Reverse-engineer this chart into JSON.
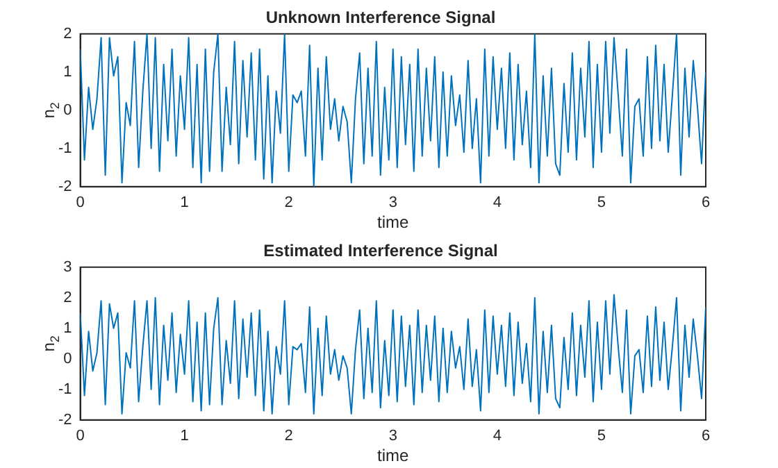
{
  "chart_data": [
    {
      "type": "line",
      "title": "Unknown Interference Signal",
      "xlabel": "time",
      "ylabel": "n$_{2}$",
      "xlim": [
        0,
        6
      ],
      "xticks": [
        0,
        1,
        2,
        3,
        4,
        5,
        6
      ],
      "ylim": [
        -2,
        2
      ],
      "yticks": [
        -2,
        -1,
        0,
        1,
        2
      ],
      "grid": false,
      "legend": false,
      "marker": "none",
      "line_style": "solid",
      "x": [
        0,
        0.04,
        0.08,
        0.12,
        0.16,
        0.2,
        0.24,
        0.28,
        0.32,
        0.36,
        0.4,
        0.44,
        0.48,
        0.52,
        0.56,
        0.6,
        0.64,
        0.68,
        0.72,
        0.76,
        0.8,
        0.84,
        0.88,
        0.92,
        0.96,
        1,
        1.04,
        1.08,
        1.12,
        1.16,
        1.2,
        1.24,
        1.28,
        1.32,
        1.36,
        1.4,
        1.44,
        1.48,
        1.52,
        1.56,
        1.6,
        1.64,
        1.68,
        1.72,
        1.76,
        1.8,
        1.84,
        1.88,
        1.92,
        1.96,
        2,
        2.04,
        2.08,
        2.12,
        2.16,
        2.2,
        2.24,
        2.28,
        2.32,
        2.36,
        2.4,
        2.44,
        2.48,
        2.52,
        2.56,
        2.6,
        2.64,
        2.68,
        2.72,
        2.76,
        2.8,
        2.84,
        2.88,
        2.92,
        2.96,
        3,
        3.04,
        3.08,
        3.12,
        3.16,
        3.2,
        3.24,
        3.28,
        3.32,
        3.36,
        3.4,
        3.44,
        3.48,
        3.52,
        3.56,
        3.6,
        3.64,
        3.68,
        3.72,
        3.76,
        3.8,
        3.84,
        3.88,
        3.92,
        3.96,
        4,
        4.04,
        4.08,
        4.12,
        4.16,
        4.2,
        4.24,
        4.28,
        4.32,
        4.36,
        4.4,
        4.44,
        4.48,
        4.52,
        4.56,
        4.6,
        4.64,
        4.68,
        4.72,
        4.76,
        4.8,
        4.84,
        4.88,
        4.92,
        4.96,
        5,
        5.04,
        5.08,
        5.12,
        5.16,
        5.2,
        5.24,
        5.28,
        5.32,
        5.36,
        5.4,
        5.44,
        5.48,
        5.52,
        5.56,
        5.6,
        5.64,
        5.68,
        5.72,
        5.76,
        5.8,
        5.84,
        5.88,
        5.92,
        5.96,
        6
      ],
      "series": [
        {
          "color": "#0072bd",
          "values": [
            1.6,
            -1.3,
            0.6,
            -0.5,
            0.3,
            1.9,
            -1.7,
            1.9,
            0.9,
            1.4,
            -1.9,
            0.2,
            -0.4,
            1.8,
            -1.5,
            0.5,
            2.0,
            -1.0,
            1.9,
            -1.6,
            1.2,
            -0.8,
            1.6,
            -1.2,
            0.9,
            -0.5,
            1.9,
            -1.5,
            1.2,
            -1.9,
            1.6,
            -1.6,
            1.0,
            2.0,
            -1.6,
            0.6,
            -0.9,
            1.8,
            -1.4,
            1.3,
            -0.7,
            1.5,
            -1.3,
            1.6,
            -1.8,
            0.9,
            -1.9,
            0.5,
            -0.6,
            2.0,
            -1.6,
            0.4,
            0.2,
            0.5,
            -1.2,
            1.7,
            -2.0,
            1.1,
            -1.3,
            1.4,
            -0.5,
            0.3,
            -0.8,
            0.1,
            -0.3,
            -1.9,
            0.3,
            1.5,
            -1.4,
            1.1,
            -1.2,
            1.8,
            -1.7,
            0.6,
            -1.3,
            1.6,
            -1.5,
            1.4,
            -0.9,
            1.2,
            -1.6,
            1.6,
            -1.2,
            1.1,
            -0.8,
            1.4,
            -1.5,
            1.0,
            -1.2,
            0.9,
            -0.4,
            0.4,
            -1.1,
            1.3,
            -1.0,
            0.3,
            -1.9,
            1.6,
            -1.2,
            1.4,
            -0.5,
            1.1,
            -1.0,
            1.5,
            -1.3,
            1.2,
            -0.9,
            0.5,
            -1.5,
            2.0,
            -1.9,
            0.9,
            -1.2,
            1.1,
            -1.4,
            -1.7,
            0.7,
            -1.1,
            1.5,
            -1.3,
            1.1,
            -0.7,
            1.8,
            -1.5,
            1.2,
            -1.1,
            1.8,
            -0.6,
            1.9,
            0.4,
            -1.2,
            1.6,
            -1.9,
            0.1,
            0.3,
            -1.2,
            1.4,
            -1.0,
            1.7,
            -0.8,
            1.2,
            -1.1,
            0.4,
            2.0,
            -1.7,
            1.1,
            -0.7,
            1.3,
            0.1,
            -1.4,
            1.0
          ]
        }
      ]
    },
    {
      "type": "line",
      "title": "Estimated Interference Signal",
      "xlabel": "time",
      "ylabel": "n$_{2}$",
      "xlim": [
        0,
        6
      ],
      "xticks": [
        0,
        1,
        2,
        3,
        4,
        5,
        6
      ],
      "ylim": [
        -2,
        3
      ],
      "yticks": [
        -2,
        -1,
        0,
        1,
        2,
        3
      ],
      "grid": false,
      "legend": false,
      "marker": "none",
      "line_style": "solid",
      "x": [
        0,
        0.04,
        0.08,
        0.12,
        0.16,
        0.2,
        0.24,
        0.28,
        0.32,
        0.36,
        0.4,
        0.44,
        0.48,
        0.52,
        0.56,
        0.6,
        0.64,
        0.68,
        0.72,
        0.76,
        0.8,
        0.84,
        0.88,
        0.92,
        0.96,
        1,
        1.04,
        1.08,
        1.12,
        1.16,
        1.2,
        1.24,
        1.28,
        1.32,
        1.36,
        1.4,
        1.44,
        1.48,
        1.52,
        1.56,
        1.6,
        1.64,
        1.68,
        1.72,
        1.76,
        1.8,
        1.84,
        1.88,
        1.92,
        1.96,
        2,
        2.04,
        2.08,
        2.12,
        2.16,
        2.2,
        2.24,
        2.28,
        2.32,
        2.36,
        2.4,
        2.44,
        2.48,
        2.52,
        2.56,
        2.6,
        2.64,
        2.68,
        2.72,
        2.76,
        2.8,
        2.84,
        2.88,
        2.92,
        2.96,
        3,
        3.04,
        3.08,
        3.12,
        3.16,
        3.2,
        3.24,
        3.28,
        3.32,
        3.36,
        3.4,
        3.44,
        3.48,
        3.52,
        3.56,
        3.6,
        3.64,
        3.68,
        3.72,
        3.76,
        3.8,
        3.84,
        3.88,
        3.92,
        3.96,
        4,
        4.04,
        4.08,
        4.12,
        4.16,
        4.2,
        4.24,
        4.28,
        4.32,
        4.36,
        4.4,
        4.44,
        4.48,
        4.52,
        4.56,
        4.6,
        4.64,
        4.68,
        4.72,
        4.76,
        4.8,
        4.84,
        4.88,
        4.92,
        4.96,
        5,
        5.04,
        5.08,
        5.12,
        5.16,
        5.2,
        5.24,
        5.28,
        5.32,
        5.36,
        5.4,
        5.44,
        5.48,
        5.52,
        5.56,
        5.6,
        5.64,
        5.68,
        5.72,
        5.76,
        5.8,
        5.84,
        5.88,
        5.92,
        5.96,
        6
      ],
      "series": [
        {
          "color": "#0072bd",
          "values": [
            1.5,
            -1.2,
            0.9,
            -0.4,
            0.2,
            1.9,
            -1.5,
            1.8,
            1.0,
            1.5,
            -1.8,
            0.2,
            -0.3,
            1.9,
            -1.4,
            0.4,
            1.9,
            -1.0,
            2.0,
            -1.5,
            1.1,
            -0.7,
            1.5,
            -1.1,
            0.8,
            -0.5,
            1.9,
            -1.4,
            1.2,
            -1.7,
            1.5,
            -1.5,
            1.0,
            2.0,
            -1.5,
            0.6,
            -0.8,
            1.9,
            -1.3,
            1.3,
            -0.6,
            1.5,
            -1.2,
            1.6,
            -1.7,
            0.9,
            -1.8,
            0.4,
            -0.5,
            1.9,
            -1.5,
            0.4,
            0.3,
            0.5,
            -1.1,
            1.7,
            -1.8,
            1.0,
            -1.2,
            1.4,
            -0.5,
            0.3,
            -0.7,
            0.1,
            -0.3,
            -1.8,
            0.3,
            1.6,
            -1.3,
            1.0,
            -1.1,
            1.9,
            -1.6,
            0.6,
            -1.2,
            1.6,
            -1.4,
            1.4,
            -0.9,
            1.1,
            -1.5,
            1.6,
            -1.1,
            1.1,
            -0.7,
            1.4,
            -1.4,
            1.0,
            -1.1,
            0.9,
            -0.3,
            0.4,
            -1.0,
            1.3,
            -0.9,
            0.3,
            -1.7,
            1.6,
            -1.1,
            1.4,
            -0.5,
            1.1,
            -0.9,
            1.5,
            -1.2,
            1.2,
            -0.8,
            0.5,
            -1.4,
            2.0,
            -1.8,
            0.9,
            -1.1,
            1.1,
            -1.3,
            -1.6,
            0.7,
            -1.0,
            1.5,
            -1.2,
            1.1,
            -0.6,
            1.9,
            -1.4,
            1.2,
            -1.0,
            1.9,
            -0.5,
            2.1,
            0.4,
            -1.1,
            1.6,
            -1.8,
            0.1,
            0.3,
            -1.1,
            1.4,
            -0.9,
            1.7,
            -0.7,
            1.2,
            -1.0,
            0.4,
            2.0,
            -1.7,
            1.1,
            -0.6,
            1.3,
            0.1,
            -1.3,
            1.7
          ]
        }
      ]
    }
  ]
}
